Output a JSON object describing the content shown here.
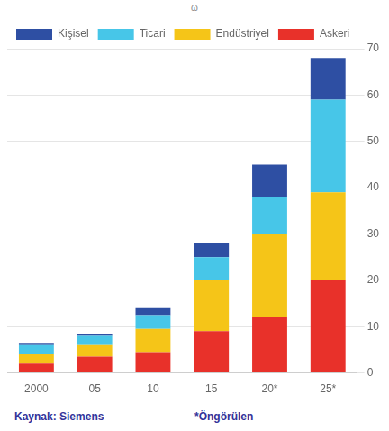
{
  "chart_data": {
    "type": "bar",
    "stacked": true,
    "categories": [
      "2000",
      "05",
      "10",
      "15",
      "20*",
      "25*"
    ],
    "series": [
      {
        "name": "Askeri",
        "color": "#e8312a",
        "values": [
          2.0,
          3.5,
          4.5,
          9.0,
          12.0,
          20.0
        ]
      },
      {
        "name": "Endüstriyel",
        "color": "#f5c518",
        "values": [
          2.0,
          2.5,
          5.0,
          11.0,
          18.0,
          19.0
        ]
      },
      {
        "name": "Ticari",
        "color": "#47c6e8",
        "values": [
          2.0,
          2.0,
          3.0,
          5.0,
          8.0,
          20.0
        ]
      },
      {
        "name": "Kişisel",
        "color": "#2e4fa3",
        "values": [
          0.5,
          0.5,
          1.5,
          3.0,
          7.0,
          9.0
        ]
      }
    ],
    "ylim": [
      0,
      70
    ],
    "yticks": [
      0,
      10,
      20,
      30,
      40,
      50,
      60,
      70
    ],
    "grid": true,
    "legend": "top-left",
    "annotations": [
      "ω",
      "Kaynak: Siemens",
      "*Öngörülen"
    ]
  }
}
